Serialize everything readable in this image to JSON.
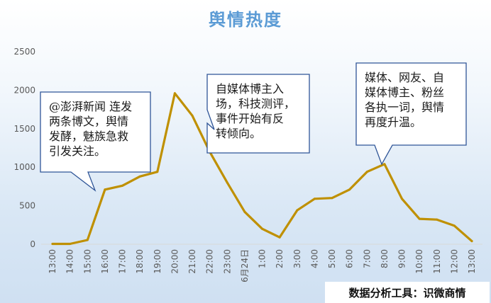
{
  "chart_data": {
    "type": "line",
    "title": "舆情热度",
    "xlabel": "",
    "ylabel": "",
    "ylim": [
      0,
      2500
    ],
    "yticks": [
      0,
      500,
      1000,
      1500,
      2000,
      2500
    ],
    "grid": false,
    "categories": [
      "13:00",
      "14:00",
      "15:00",
      "16:00",
      "17:00",
      "18:00",
      "19:00",
      "20:00",
      "21:00",
      "22:00",
      "23:00",
      "6月24日",
      "1:00",
      "2:00",
      "3:00",
      "4:00",
      "5:00",
      "6:00",
      "7:00",
      "8:00",
      "9:00",
      "10:00",
      "11:00",
      "12:00",
      "13:00"
    ],
    "series": [
      {
        "values": [
          5,
          5,
          55,
          710,
          760,
          880,
          940,
          1960,
          1670,
          1200,
          800,
          420,
          200,
          90,
          440,
          590,
          600,
          710,
          940,
          1040,
          590,
          330,
          320,
          240,
          40
        ],
        "color": "#bf9000"
      }
    ],
    "annotations": [
      {
        "lines": [
          "@澎湃新闻 连发",
          "两条博文，舆情",
          "发酵，魅族急救",
          "引发关注。"
        ],
        "target_index": 3
      },
      {
        "lines": [
          "自媒体博主入",
          "场，科技测评，",
          "事件开始有反",
          "转倾向。"
        ],
        "target_index": 9
      },
      {
        "lines": [
          "媒体、网友、自",
          "媒体博主、粉丝",
          "各执一词，舆情",
          "再度升温。"
        ],
        "target_index": 19
      }
    ]
  },
  "footer": "数据分析工具：识微商情"
}
